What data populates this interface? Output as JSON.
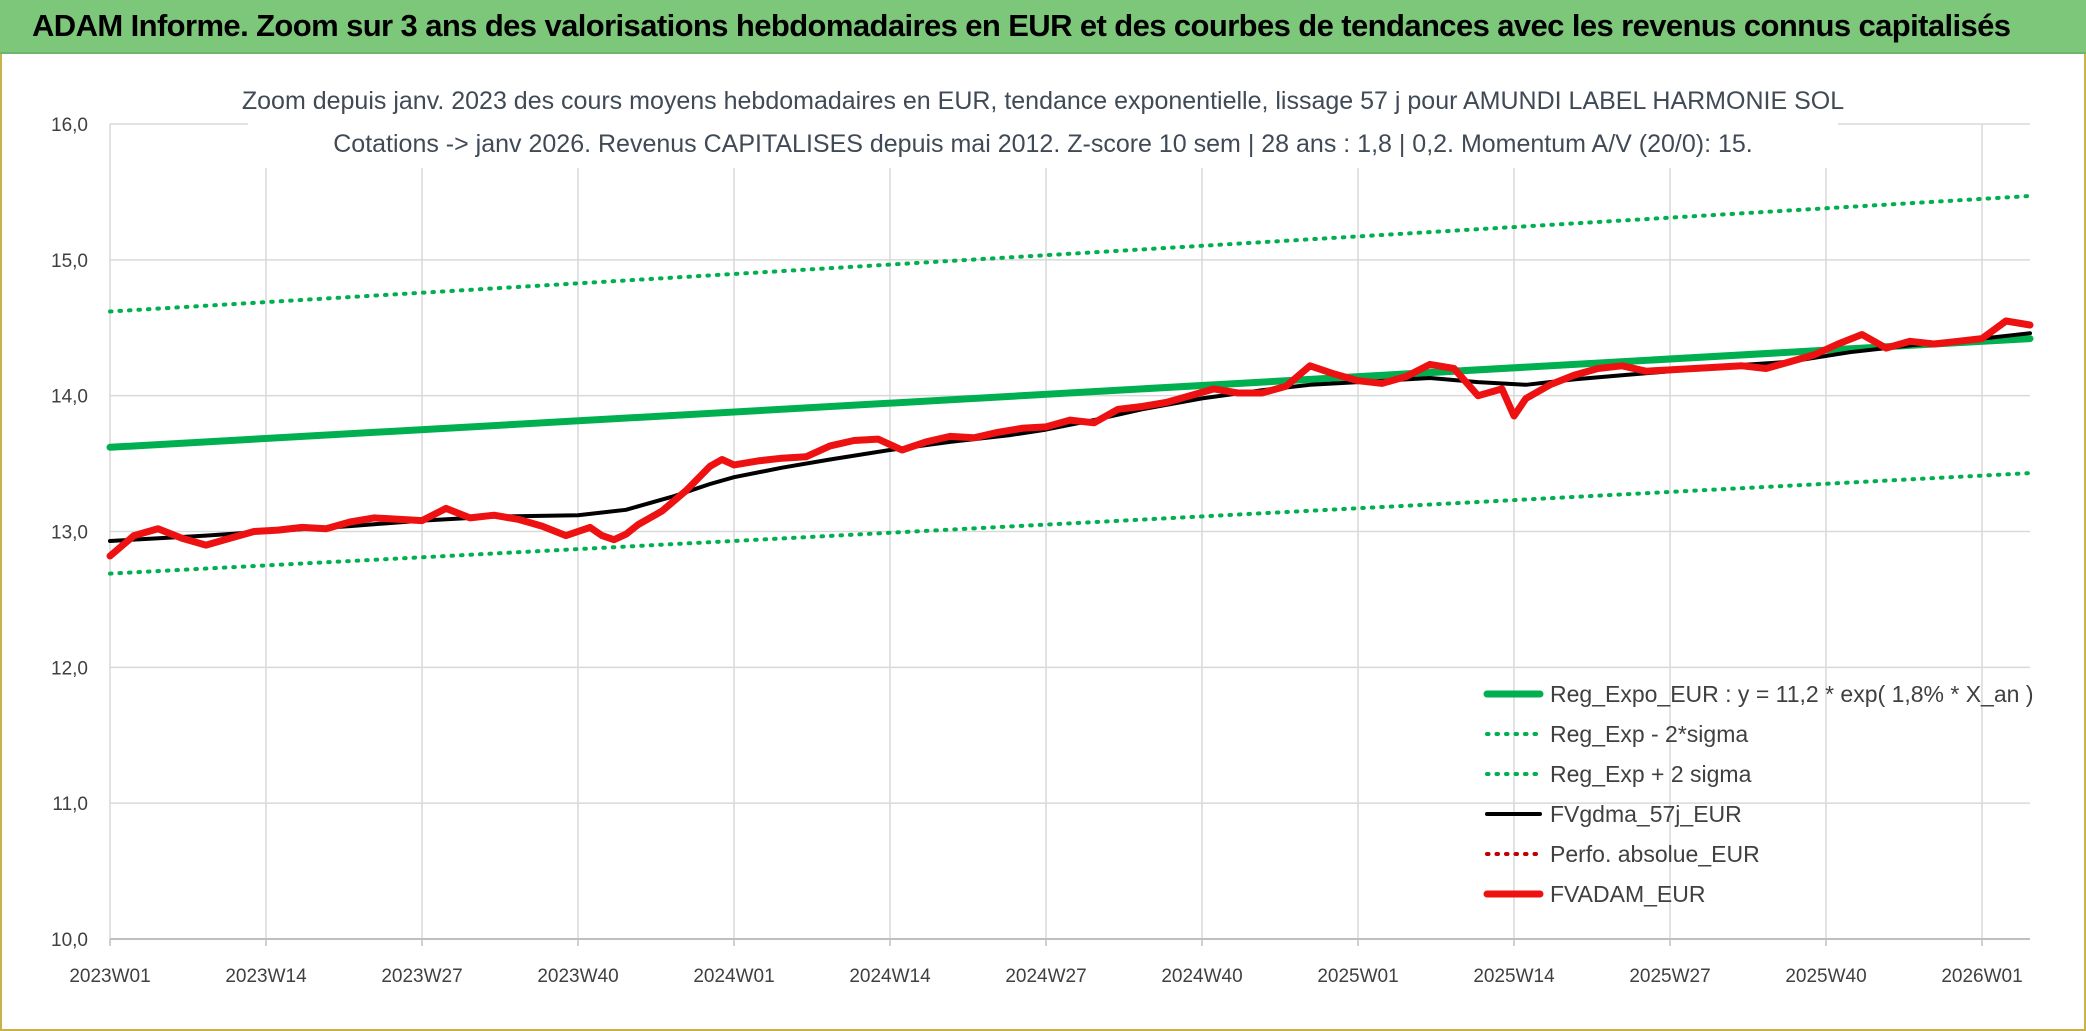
{
  "header": {
    "title": "ADAM Informe. Zoom sur 3 ans des valorisations hebdomadaires en EUR et des courbes de tendances avec les revenus connus capitalisés"
  },
  "colors": {
    "banner": "#7dc77a",
    "reg_expo": "#00b050",
    "fvgdma": "#000000",
    "fvadam": "#ee1111",
    "perfo": "#c00000",
    "grid": "#d9d9d9"
  },
  "chart_data": {
    "type": "line",
    "title": "Zoom depuis janv. 2023 des cours moyens hebdomadaires en EUR, tendance exponentielle, lissage 57 j pour AMUNDI LABEL HARMONIE SOL",
    "subtitle": "Cotations -> janv 2026. Revenus CAPITALISES depuis mai 2012. Z-score 10 sem | 28 ans : 1,8 | 0,2. Momentum A/V (20/0): 15.",
    "xlabel": "",
    "ylabel": "",
    "ylim": [
      10.0,
      16.0
    ],
    "yticks": [
      "10,0",
      "11,0",
      "12,0",
      "13,0",
      "14,0",
      "15,0",
      "16,0"
    ],
    "x_week_range": [
      0,
      160
    ],
    "xticks": [
      {
        "label": "2023W01",
        "week": 0
      },
      {
        "label": "2023W14",
        "week": 13
      },
      {
        "label": "2023W27",
        "week": 26
      },
      {
        "label": "2023W40",
        "week": 39
      },
      {
        "label": "2024W01",
        "week": 52
      },
      {
        "label": "2024W14",
        "week": 65
      },
      {
        "label": "2024W27",
        "week": 78
      },
      {
        "label": "2024W40",
        "week": 91
      },
      {
        "label": "2025W01",
        "week": 104
      },
      {
        "label": "2025W14",
        "week": 117
      },
      {
        "label": "2025W27",
        "week": 130
      },
      {
        "label": "2025W40",
        "week": 143
      },
      {
        "label": "2026W01",
        "week": 156
      }
    ],
    "grid": true,
    "legend_position": "bottom-right",
    "series": [
      {
        "name": "Reg_Expo_EUR : y = 11,2 * exp( 1,8% *  X_an )",
        "style": "solid-thick",
        "color": "#00b050",
        "x": [
          0,
          160
        ],
        "y": [
          13.62,
          14.42
        ]
      },
      {
        "name": "Reg_Exp - 2*sigma",
        "style": "dotted",
        "color": "#00b050",
        "x": [
          0,
          160
        ],
        "y": [
          12.69,
          13.43
        ]
      },
      {
        "name": "Reg_Exp + 2 sigma",
        "style": "dotted",
        "color": "#00b050",
        "x": [
          0,
          160
        ],
        "y": [
          14.62,
          15.47
        ]
      },
      {
        "name": "FVgdma_57j_EUR",
        "style": "solid",
        "color": "#000000",
        "x": [
          0,
          8,
          13,
          20,
          26,
          32,
          39,
          43,
          47,
          50,
          52,
          56,
          60,
          65,
          70,
          75,
          78,
          82,
          86,
          91,
          96,
          100,
          104,
          110,
          114,
          118,
          122,
          126,
          130,
          135,
          140,
          145,
          150,
          155,
          160
        ],
        "y": [
          12.93,
          12.97,
          13.0,
          13.04,
          13.08,
          13.11,
          13.12,
          13.16,
          13.26,
          13.35,
          13.4,
          13.47,
          13.53,
          13.6,
          13.66,
          13.71,
          13.75,
          13.82,
          13.9,
          13.98,
          14.04,
          14.08,
          14.1,
          14.13,
          14.1,
          14.08,
          14.12,
          14.15,
          14.18,
          14.22,
          14.25,
          14.32,
          14.37,
          14.41,
          14.46
        ]
      },
      {
        "name": "Perfo. absolue_EUR",
        "style": "dotted",
        "color": "#c00000",
        "x": [],
        "y": []
      },
      {
        "name": "FVADAM_EUR",
        "style": "solid-thick",
        "color": "#ee1111",
        "x": [
          0,
          2,
          4,
          6,
          8,
          10,
          12,
          14,
          16,
          18,
          20,
          22,
          24,
          26,
          28,
          30,
          32,
          34,
          36,
          38,
          40,
          41,
          42,
          43,
          44,
          46,
          48,
          50,
          51,
          52,
          54,
          56,
          58,
          60,
          62,
          64,
          66,
          68,
          70,
          72,
          74,
          76,
          78,
          80,
          82,
          84,
          86,
          88,
          90,
          92,
          94,
          96,
          98,
          100,
          102,
          104,
          106,
          108,
          110,
          112,
          114,
          116,
          117,
          118,
          120,
          122,
          124,
          126,
          128,
          130,
          132,
          134,
          136,
          138,
          140,
          142,
          144,
          146,
          148,
          150,
          152,
          154,
          156,
          158,
          160
        ],
        "y": [
          12.82,
          12.97,
          13.02,
          12.95,
          12.9,
          12.95,
          13.0,
          13.01,
          13.03,
          13.02,
          13.07,
          13.1,
          13.09,
          13.08,
          13.17,
          13.1,
          13.12,
          13.09,
          13.04,
          12.97,
          13.03,
          12.97,
          12.94,
          12.98,
          13.05,
          13.15,
          13.3,
          13.48,
          13.53,
          13.49,
          13.52,
          13.54,
          13.55,
          13.63,
          13.67,
          13.68,
          13.6,
          13.66,
          13.7,
          13.69,
          13.73,
          13.76,
          13.77,
          13.82,
          13.8,
          13.9,
          13.92,
          13.95,
          14.0,
          14.05,
          14.02,
          14.02,
          14.07,
          14.22,
          14.16,
          14.11,
          14.09,
          14.14,
          14.23,
          14.2,
          14.0,
          14.05,
          13.85,
          13.98,
          14.08,
          14.15,
          14.2,
          14.22,
          14.18,
          14.19,
          14.2,
          14.21,
          14.22,
          14.2,
          14.25,
          14.3,
          14.38,
          14.45,
          14.35,
          14.4,
          14.38,
          14.4,
          14.42,
          14.55,
          14.52
        ]
      }
    ]
  }
}
